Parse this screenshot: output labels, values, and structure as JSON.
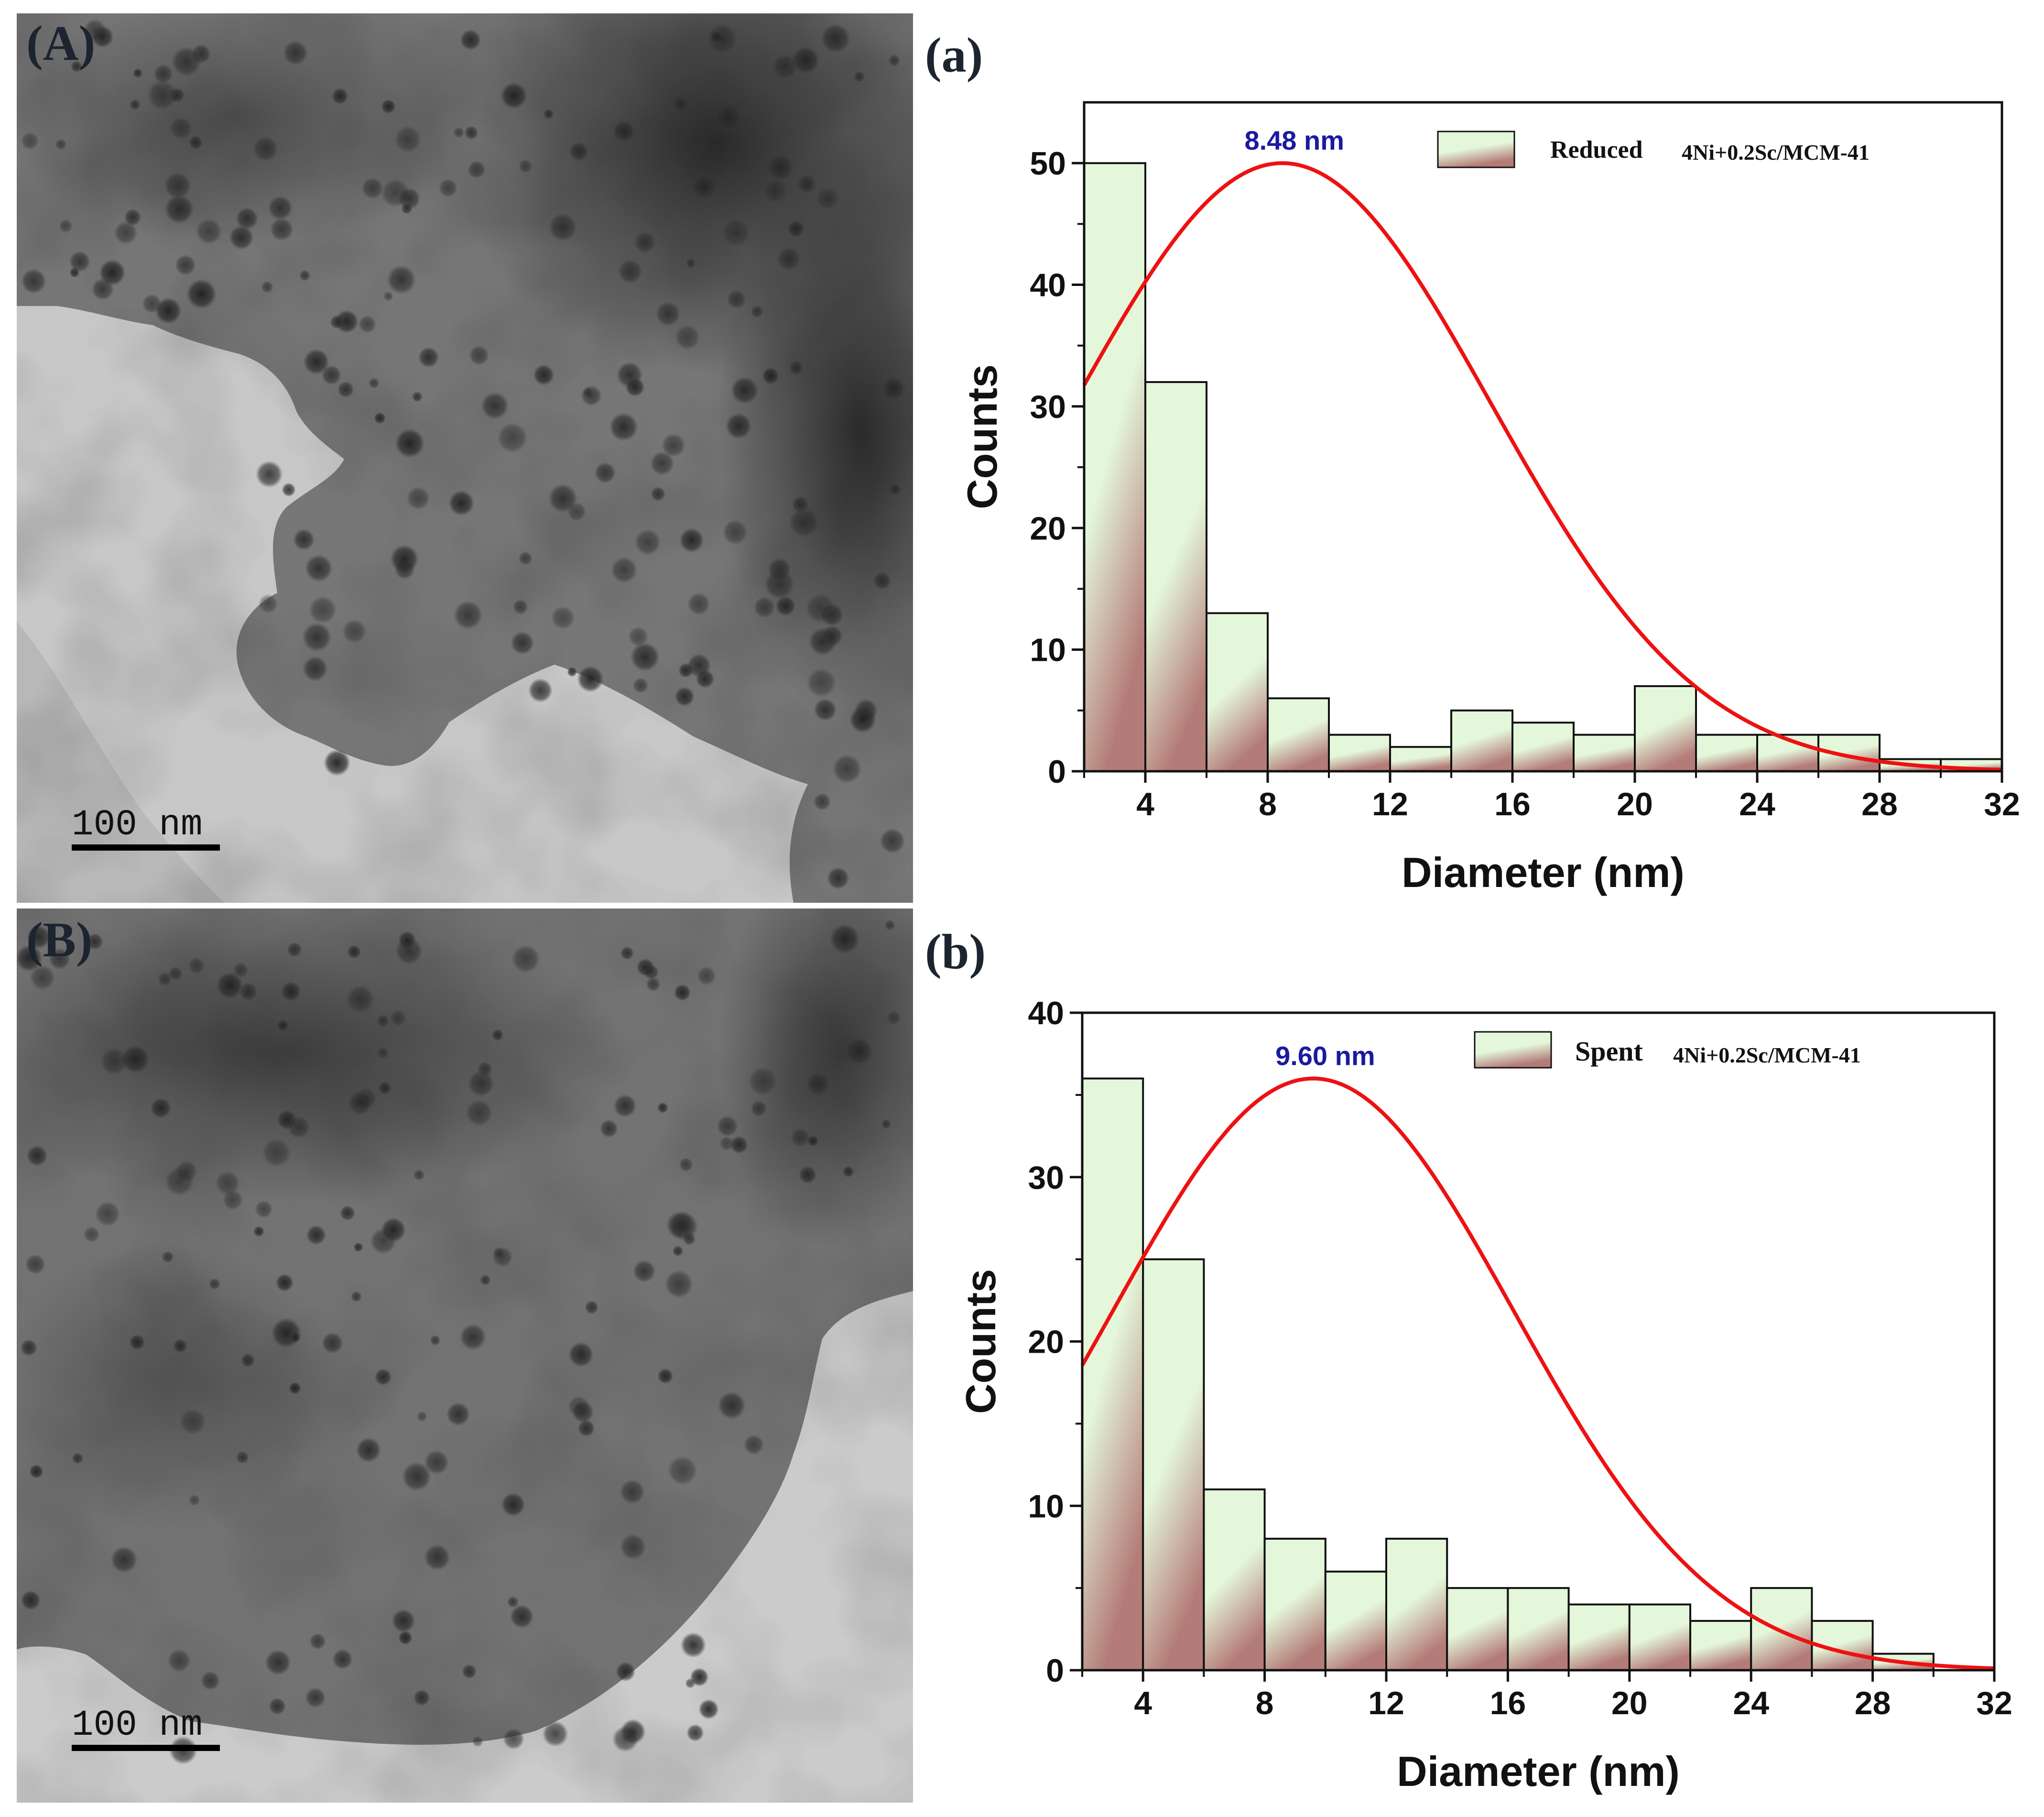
{
  "colors": {
    "bar_top": "#e4f7da",
    "bar_bottom": "#b47c78",
    "bar_stroke": "#111111",
    "fit_curve": "#ee1111",
    "peak_label": "#1a1aa0",
    "panel_label": "#1c2430"
  },
  "micrographs": [
    {
      "label": "(A)",
      "scale_bar": "100 nm"
    },
    {
      "label": "(B)",
      "scale_bar": "100 nm"
    }
  ],
  "chart_data": [
    {
      "panel": "(a)",
      "type": "bar",
      "bin_edges": [
        2,
        4,
        6,
        8,
        10,
        12,
        14,
        16,
        18,
        20,
        22,
        24,
        26,
        28,
        30,
        32
      ],
      "values": [
        50,
        32,
        13,
        6,
        3,
        2,
        5,
        4,
        3,
        7,
        3,
        3,
        3,
        1,
        1
      ],
      "fit": {
        "type": "gaussian",
        "peak_x": 8.48,
        "peak_y": 50,
        "sigma": 6.8,
        "label": "8.48 nm"
      },
      "xlabel": "Diameter (nm)",
      "ylabel": "Counts",
      "xlim": [
        2,
        32
      ],
      "ylim": [
        0,
        55
      ],
      "xticks": [
        4,
        8,
        12,
        16,
        20,
        24,
        28,
        32
      ],
      "yticks": [
        0,
        10,
        20,
        30,
        40,
        50
      ],
      "legend": {
        "position": "top-right",
        "sample": "Reduced",
        "material": "4Ni+0.2Sc/MCM-41"
      },
      "grid": false
    },
    {
      "panel": "(b)",
      "type": "bar",
      "bin_edges": [
        2,
        4,
        6,
        8,
        10,
        12,
        14,
        16,
        18,
        20,
        22,
        24,
        26,
        28,
        30,
        32
      ],
      "values": [
        36,
        25,
        11,
        8,
        6,
        8,
        5,
        5,
        4,
        4,
        3,
        5,
        3,
        1,
        0
      ],
      "fit": {
        "type": "gaussian",
        "peak_x": 9.6,
        "peak_y": 36,
        "sigma": 6.6,
        "label": "9.60 nm"
      },
      "xlabel": "Diameter (nm)",
      "ylabel": "Counts",
      "xlim": [
        2,
        32
      ],
      "ylim": [
        0,
        40
      ],
      "xticks": [
        4,
        8,
        12,
        16,
        20,
        24,
        28,
        32
      ],
      "yticks": [
        0,
        10,
        20,
        30,
        40
      ],
      "legend": {
        "position": "top-right",
        "sample": "Spent",
        "material": "4Ni+0.2Sc/MCM-41"
      },
      "grid": false
    }
  ]
}
